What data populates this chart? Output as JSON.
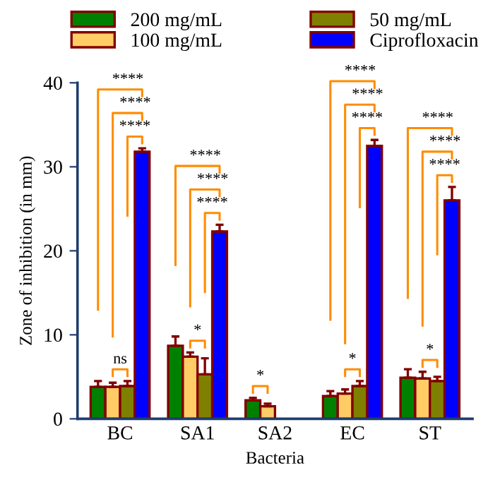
{
  "chart_data": {
    "type": "bar",
    "xlabel": "Bacteria",
    "ylabel": "Zone of inhibition (in mm)",
    "categories": [
      "BC",
      "SA1",
      "SA2",
      "EC",
      "ST"
    ],
    "series": [
      {
        "name": "200 mg/mL",
        "color": "#008000",
        "values": [
          3.8,
          8.7,
          2.2,
          2.7,
          4.9
        ],
        "errors": [
          [
            3.8,
            4.5
          ],
          [
            8.7,
            9.8
          ],
          [
            2.2,
            2.5
          ],
          [
            2.7,
            3.3
          ],
          [
            4.9,
            5.9
          ]
        ]
      },
      {
        "name": "100 mg/mL",
        "color": "#ffcc66",
        "values": [
          3.8,
          7.4,
          1.5,
          3.0,
          4.8
        ],
        "errors": [
          [
            3.8,
            4.3
          ],
          [
            7.4,
            7.9
          ],
          [
            1.5,
            1.8
          ],
          [
            3.0,
            3.5
          ],
          [
            4.8,
            5.6
          ]
        ]
      },
      {
        "name": "50 mg/mL",
        "color": "#808000",
        "values": [
          3.9,
          5.3,
          null,
          3.9,
          4.5
        ],
        "errors": [
          [
            3.9,
            4.5
          ],
          [
            5.3,
            7.2
          ],
          null,
          [
            3.9,
            4.5
          ],
          [
            4.5,
            5.0
          ]
        ]
      },
      {
        "name": "Ciprofloxacin",
        "color": "#0000ff",
        "values": [
          31.8,
          22.3,
          null,
          32.5,
          26.0
        ],
        "errors": [
          [
            31.8,
            32.2
          ],
          [
            22.3,
            23.1
          ],
          null,
          [
            32.5,
            33.2
          ],
          [
            26.0,
            27.6
          ]
        ]
      }
    ],
    "ylim": [
      0,
      40
    ],
    "yticks": [
      0,
      10,
      20,
      30,
      40
    ],
    "grid": false,
    "legend": "top",
    "annotations": [
      "****",
      "****",
      "****",
      "ns",
      "****",
      "****",
      "****",
      "*",
      "*",
      "****",
      "****",
      "****",
      "*",
      "****",
      "****",
      "****",
      "*"
    ]
  }
}
